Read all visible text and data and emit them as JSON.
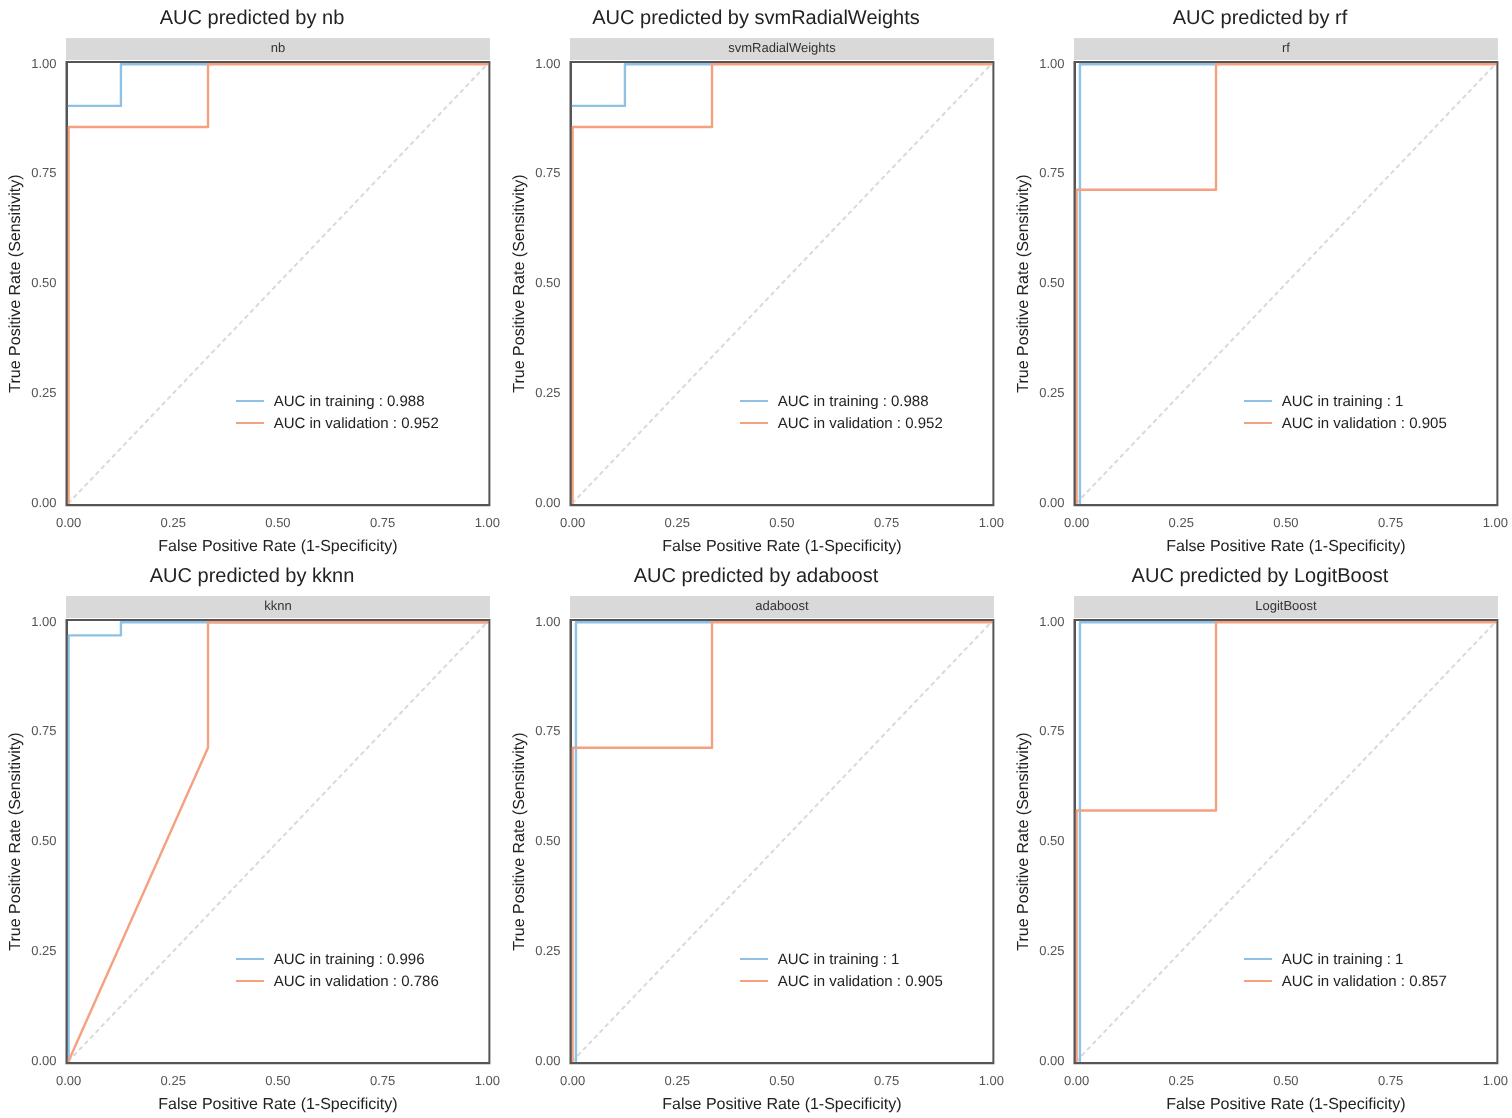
{
  "chart_data": [
    {
      "type": "line",
      "title": "AUC predicted by nb",
      "subtitle": "nb",
      "xlabel": "False Positive Rate (1-Specificity)",
      "ylabel": "True Positive Rate (Sensitivity)",
      "xlim": [
        -0.005,
        1.005
      ],
      "ylim": [
        -0.005,
        1.005
      ],
      "xticks": [
        {
          "value": 0,
          "label": "0.00"
        },
        {
          "value": 0.25,
          "label": "0.25"
        },
        {
          "value": 0.5,
          "label": "0.50"
        },
        {
          "value": 0.75,
          "label": "0.75"
        },
        {
          "value": 1,
          "label": "1.00"
        }
      ],
      "yticks": [
        {
          "value": 0,
          "label": "0.00"
        },
        {
          "value": 0.25,
          "label": "0.25"
        },
        {
          "value": 0.5,
          "label": "0.50"
        },
        {
          "value": 0.75,
          "label": "0.75"
        },
        {
          "value": 1,
          "label": "1.00"
        }
      ],
      "grid": false,
      "legend": "bottom",
      "marker": "none",
      "series": [
        {
          "type": "line",
          "color": "#d9d9d9",
          "line_style": "dotted",
          "x": [
            0,
            1
          ],
          "values": [
            0,
            1
          ]
        },
        {
          "name": "AUC in training : 0.988",
          "color": "#8ec1e6",
          "x": [
            0,
            0.125,
            0.125,
            0.333
          ],
          "values": [
            0.905,
            0.905,
            1,
            1
          ]
        },
        {
          "name": "AUC in validation : 0.952",
          "color": "#f5a07f",
          "x": [
            0,
            0,
            0.333,
            0.333,
            1
          ],
          "values": [
            0,
            0.857,
            0.857,
            1,
            1
          ]
        }
      ]
    },
    {
      "type": "line",
      "title": "AUC predicted by svmRadialWeights",
      "subtitle": "svmRadialWeights",
      "xlabel": "False Positive Rate (1-Specificity)",
      "ylabel": "True Positive Rate (Sensitivity)",
      "xlim": [
        -0.005,
        1.005
      ],
      "ylim": [
        -0.005,
        1.005
      ],
      "xticks": [
        {
          "value": 0,
          "label": "0.00"
        },
        {
          "value": 0.25,
          "label": "0.25"
        },
        {
          "value": 0.5,
          "label": "0.50"
        },
        {
          "value": 0.75,
          "label": "0.75"
        },
        {
          "value": 1,
          "label": "1.00"
        }
      ],
      "yticks": [
        {
          "value": 0,
          "label": "0.00"
        },
        {
          "value": 0.25,
          "label": "0.25"
        },
        {
          "value": 0.5,
          "label": "0.50"
        },
        {
          "value": 0.75,
          "label": "0.75"
        },
        {
          "value": 1,
          "label": "1.00"
        }
      ],
      "grid": false,
      "legend": "bottom",
      "marker": "none",
      "series": [
        {
          "type": "line",
          "color": "#d9d9d9",
          "line_style": "dotted",
          "x": [
            0,
            1
          ],
          "values": [
            0,
            1
          ]
        },
        {
          "name": "AUC in training : 0.988",
          "color": "#8ec1e6",
          "x": [
            0,
            0.125,
            0.125,
            0.333
          ],
          "values": [
            0.905,
            0.905,
            1,
            1
          ]
        },
        {
          "name": "AUC in validation : 0.952",
          "color": "#f5a07f",
          "x": [
            0,
            0,
            0.333,
            0.333,
            1
          ],
          "values": [
            0,
            0.857,
            0.857,
            1,
            1
          ]
        }
      ]
    },
    {
      "type": "line",
      "title": "AUC predicted by rf",
      "subtitle": "rf",
      "xlabel": "False Positive Rate (1-Specificity)",
      "ylabel": "True Positive Rate (Sensitivity)",
      "xlim": [
        -0.005,
        1.005
      ],
      "ylim": [
        -0.005,
        1.005
      ],
      "xticks": [
        {
          "value": 0,
          "label": "0.00"
        },
        {
          "value": 0.25,
          "label": "0.25"
        },
        {
          "value": 0.5,
          "label": "0.50"
        },
        {
          "value": 0.75,
          "label": "0.75"
        },
        {
          "value": 1,
          "label": "1.00"
        }
      ],
      "yticks": [
        {
          "value": 0,
          "label": "0.00"
        },
        {
          "value": 0.25,
          "label": "0.25"
        },
        {
          "value": 0.5,
          "label": "0.50"
        },
        {
          "value": 0.75,
          "label": "0.75"
        },
        {
          "value": 1,
          "label": "1.00"
        }
      ],
      "grid": false,
      "legend": "bottom",
      "marker": "none",
      "series": [
        {
          "type": "line",
          "color": "#d9d9d9",
          "line_style": "dotted",
          "x": [
            0,
            1
          ],
          "values": [
            0,
            1
          ]
        },
        {
          "name": "AUC in training : 1",
          "color": "#8ec1e6",
          "x": [
            0.008,
            0.008,
            0.333
          ],
          "values": [
            0,
            1,
            1
          ]
        },
        {
          "name": "AUC in validation : 0.905",
          "color": "#f5a07f",
          "x": [
            0,
            0,
            0.333,
            0.333,
            1
          ],
          "values": [
            0,
            0.714,
            0.714,
            1,
            1
          ]
        }
      ]
    },
    {
      "type": "line",
      "title": "AUC predicted by kknn",
      "subtitle": "kknn",
      "xlabel": "False Positive Rate (1-Specificity)",
      "ylabel": "True Positive Rate (Sensitivity)",
      "xlim": [
        -0.005,
        1.005
      ],
      "ylim": [
        -0.005,
        1.005
      ],
      "xticks": [
        {
          "value": 0,
          "label": "0.00"
        },
        {
          "value": 0.25,
          "label": "0.25"
        },
        {
          "value": 0.5,
          "label": "0.50"
        },
        {
          "value": 0.75,
          "label": "0.75"
        },
        {
          "value": 1,
          "label": "1.00"
        }
      ],
      "yticks": [
        {
          "value": 0,
          "label": "0.00"
        },
        {
          "value": 0.25,
          "label": "0.25"
        },
        {
          "value": 0.5,
          "label": "0.50"
        },
        {
          "value": 0.75,
          "label": "0.75"
        },
        {
          "value": 1,
          "label": "1.00"
        }
      ],
      "grid": false,
      "legend": "bottom",
      "marker": "none",
      "series": [
        {
          "type": "line",
          "color": "#d9d9d9",
          "line_style": "dotted",
          "x": [
            0,
            1
          ],
          "values": [
            0,
            1
          ]
        },
        {
          "name": "AUC in training : 0.996",
          "color": "#8ec1e6",
          "x": [
            0,
            0,
            0.125,
            0.125,
            1
          ],
          "values": [
            0,
            0.97,
            0.97,
            1,
            1
          ]
        },
        {
          "name": "AUC in validation : 0.786",
          "color": "#f5a07f",
          "x": [
            0,
            0.333,
            0.333,
            1
          ],
          "values": [
            0,
            0.714,
            1,
            1
          ]
        }
      ]
    },
    {
      "type": "line",
      "title": "AUC predicted by adaboost",
      "subtitle": "adaboost",
      "xlabel": "False Positive Rate (1-Specificity)",
      "ylabel": "True Positive Rate (Sensitivity)",
      "xlim": [
        -0.005,
        1.005
      ],
      "ylim": [
        -0.005,
        1.005
      ],
      "xticks": [
        {
          "value": 0,
          "label": "0.00"
        },
        {
          "value": 0.25,
          "label": "0.25"
        },
        {
          "value": 0.5,
          "label": "0.50"
        },
        {
          "value": 0.75,
          "label": "0.75"
        },
        {
          "value": 1,
          "label": "1.00"
        }
      ],
      "yticks": [
        {
          "value": 0,
          "label": "0.00"
        },
        {
          "value": 0.25,
          "label": "0.25"
        },
        {
          "value": 0.5,
          "label": "0.50"
        },
        {
          "value": 0.75,
          "label": "0.75"
        },
        {
          "value": 1,
          "label": "1.00"
        }
      ],
      "grid": false,
      "legend": "bottom",
      "marker": "none",
      "series": [
        {
          "type": "line",
          "color": "#d9d9d9",
          "line_style": "dotted",
          "x": [
            0,
            1
          ],
          "values": [
            0,
            1
          ]
        },
        {
          "name": "AUC in training : 1",
          "color": "#8ec1e6",
          "x": [
            0.008,
            0.008,
            0.333
          ],
          "values": [
            0,
            1,
            1
          ]
        },
        {
          "name": "AUC in validation : 0.905",
          "color": "#f5a07f",
          "x": [
            0,
            0,
            0.333,
            0.333,
            1
          ],
          "values": [
            0,
            0.714,
            0.714,
            1,
            1
          ]
        }
      ]
    },
    {
      "type": "line",
      "title": "AUC predicted by LogitBoost",
      "subtitle": "LogitBoost",
      "xlabel": "False Positive Rate (1-Specificity)",
      "ylabel": "True Positive Rate (Sensitivity)",
      "xlim": [
        -0.005,
        1.005
      ],
      "ylim": [
        -0.005,
        1.005
      ],
      "xticks": [
        {
          "value": 0,
          "label": "0.00"
        },
        {
          "value": 0.25,
          "label": "0.25"
        },
        {
          "value": 0.5,
          "label": "0.50"
        },
        {
          "value": 0.75,
          "label": "0.75"
        },
        {
          "value": 1,
          "label": "1.00"
        }
      ],
      "yticks": [
        {
          "value": 0,
          "label": "0.00"
        },
        {
          "value": 0.25,
          "label": "0.25"
        },
        {
          "value": 0.5,
          "label": "0.50"
        },
        {
          "value": 0.75,
          "label": "0.75"
        },
        {
          "value": 1,
          "label": "1.00"
        }
      ],
      "grid": false,
      "legend": "bottom",
      "marker": "none",
      "series": [
        {
          "type": "line",
          "color": "#d9d9d9",
          "line_style": "dotted",
          "x": [
            0,
            1
          ],
          "values": [
            0,
            1
          ]
        },
        {
          "name": "AUC in training : 1",
          "color": "#8ec1e6",
          "x": [
            0.008,
            0.008,
            0.333
          ],
          "values": [
            0,
            1,
            1
          ]
        },
        {
          "name": "AUC in validation : 0.857",
          "color": "#f5a07f",
          "x": [
            0,
            0,
            0.333,
            0.333,
            1
          ],
          "values": [
            0,
            0.571,
            0.571,
            1,
            1
          ]
        }
      ]
    }
  ]
}
